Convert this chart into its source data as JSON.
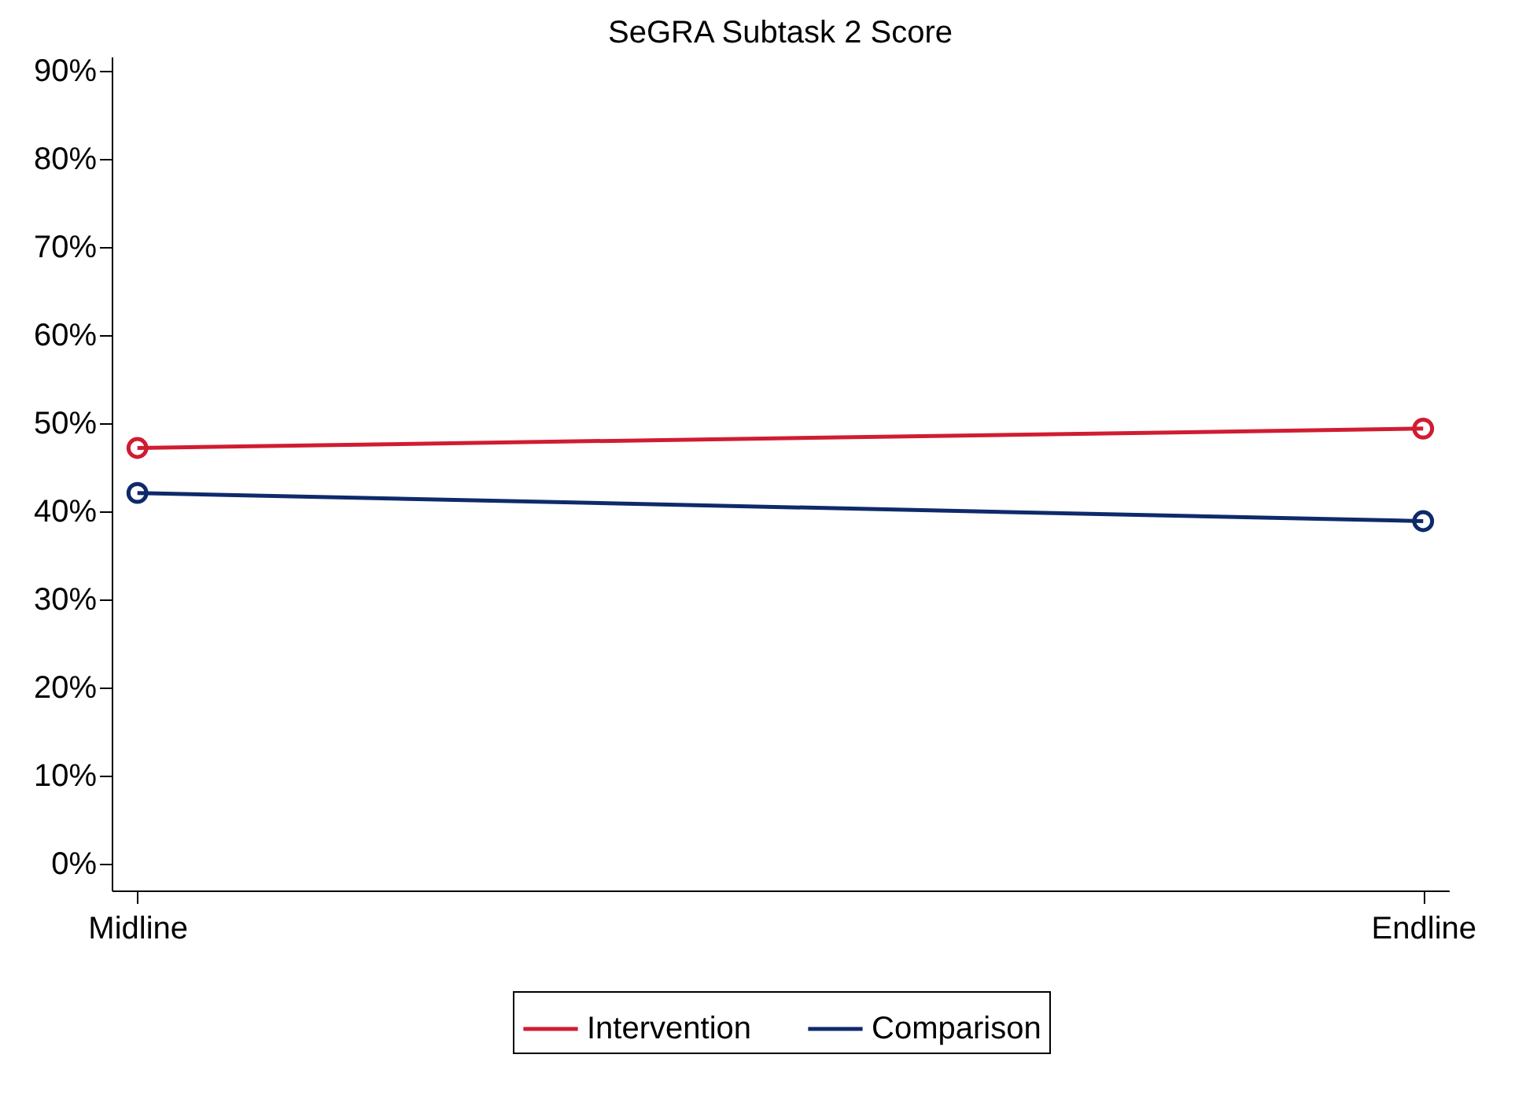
{
  "chart_data": {
    "type": "line",
    "title": "SeGRA Subtask 2 Score",
    "categories": [
      "Midline",
      "Endline"
    ],
    "series": [
      {
        "name": "Intervention",
        "color": "#d01c32",
        "values": [
          47.2,
          49.4
        ]
      },
      {
        "name": "Comparison",
        "color": "#0f2a6b",
        "values": [
          42.1,
          38.9
        ]
      }
    ],
    "ylim": [
      -3,
      91.6
    ],
    "yticks": [
      {
        "value": 0,
        "label": "0%"
      },
      {
        "value": 10,
        "label": "10%"
      },
      {
        "value": 20,
        "label": "20%"
      },
      {
        "value": 30,
        "label": "30%"
      },
      {
        "value": 40,
        "label": "40%"
      },
      {
        "value": 50,
        "label": "50%"
      },
      {
        "value": 60,
        "label": "60%"
      },
      {
        "value": 70,
        "label": "70%"
      },
      {
        "value": 80,
        "label": "80%"
      },
      {
        "value": 90,
        "label": "90%"
      }
    ],
    "grid": false,
    "legend": "bottom",
    "marker": "circle",
    "line_style": "solid"
  }
}
